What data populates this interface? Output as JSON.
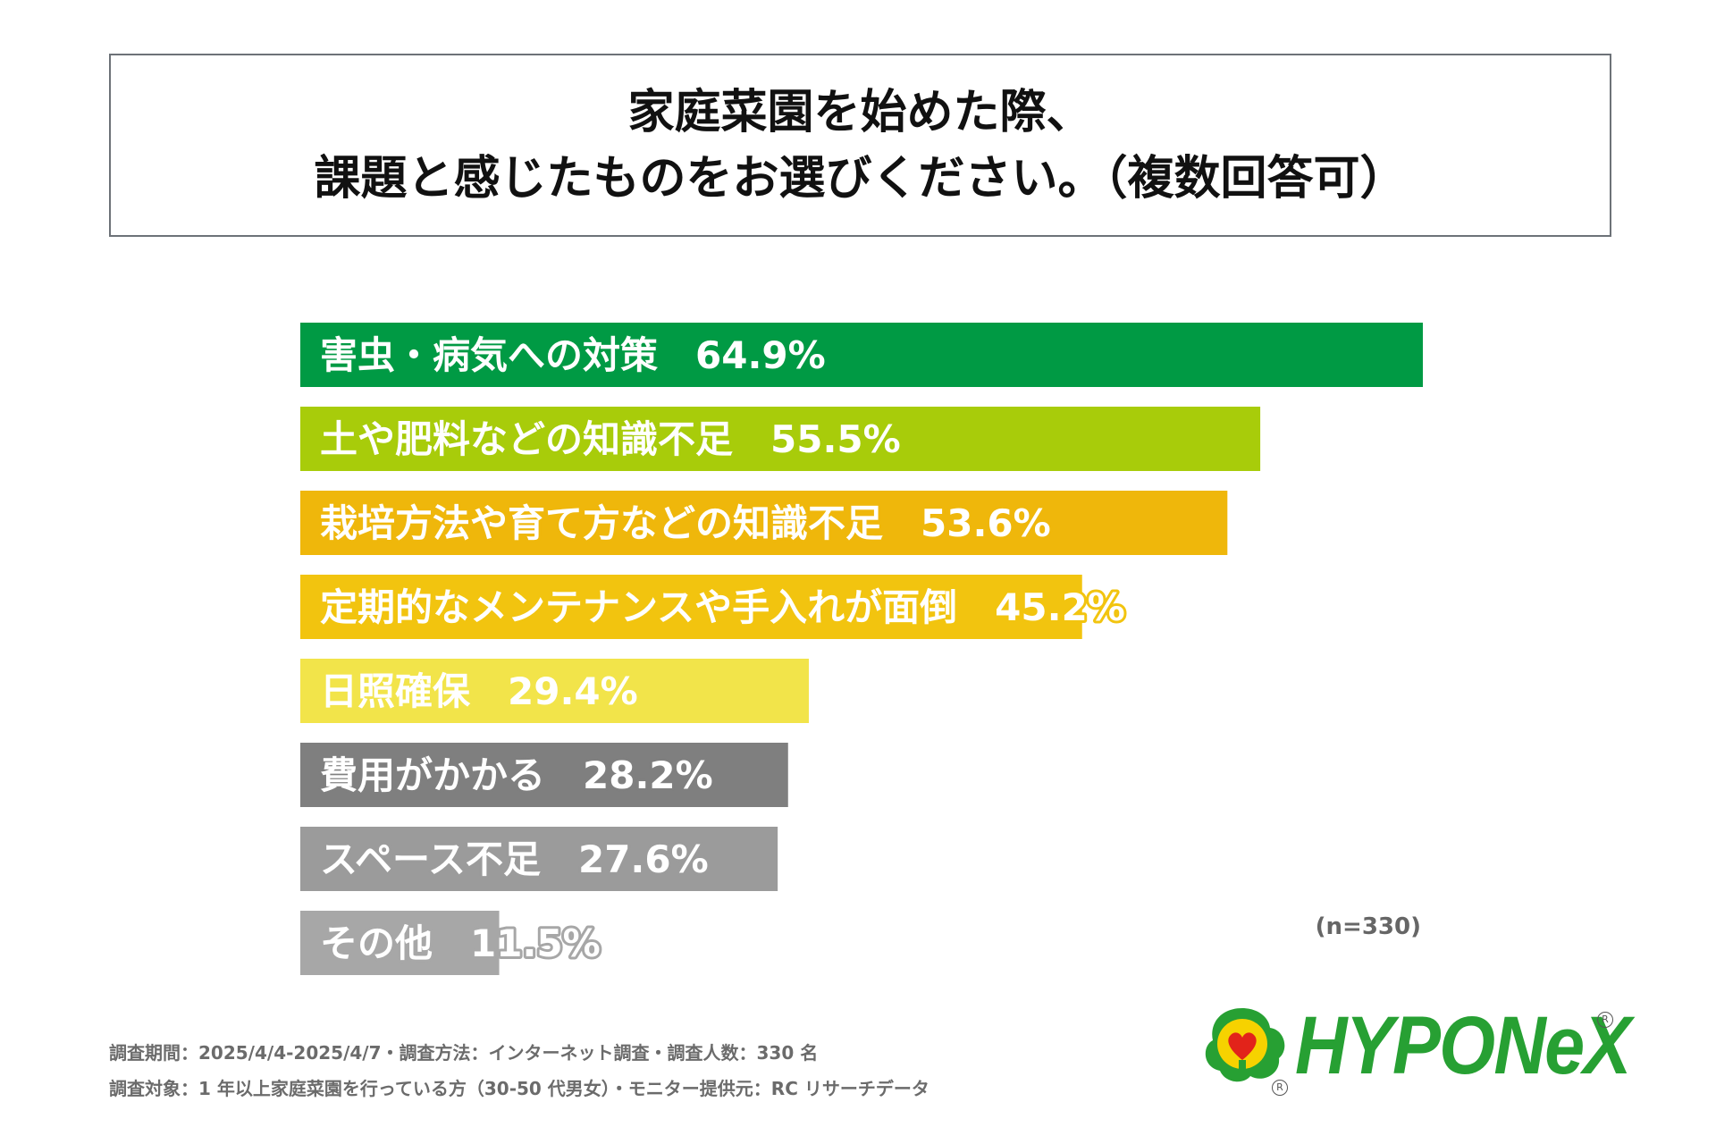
{
  "title": {
    "line1": "家庭菜園を始めた際、",
    "line2": "課題と感じたものをお選びください。（複数回答可）"
  },
  "chart_data": {
    "type": "bar",
    "orientation": "horizontal",
    "title": "家庭菜園を始めた際、課題と感じたものをお選びください。（複数回答可）",
    "unit": "%",
    "xlim": [
      0,
      100
    ],
    "categories": [
      "害虫・病気への対策",
      "土や肥料などの知識不足",
      "栽培方法や育て方などの知識不足",
      "定期的なメンテナンスや手入れが面倒",
      "日照確保",
      "費用がかかる",
      "スペース不足",
      "その他"
    ],
    "values": [
      64.9,
      55.5,
      53.6,
      45.2,
      29.4,
      28.2,
      27.6,
      11.5
    ],
    "value_labels": [
      "64.9%",
      "55.5%",
      "53.6%",
      "45.2%",
      "29.4%",
      "28.2%",
      "27.6%",
      "11.5%"
    ],
    "colors": [
      "#009a44",
      "#a8cc0a",
      "#efb70b",
      "#f2c40f",
      "#f2e44a",
      "#7f7f7f",
      "#9b9b9b",
      "#a7a7a7"
    ]
  },
  "sample_note": "(n=330)",
  "footer": {
    "line1": "調査期間：2025/4/4-2025/4/7・調査方法：インターネット調査・調査人数：330 名",
    "line2": "調査対象：1 年以上家庭菜園を行っている方（30-50 代男女）・モニター提供元：RC リサーチデータ"
  },
  "logo": {
    "text": "HYPONeX",
    "registered_mark": "R",
    "color_green": "#27a033",
    "color_red": "#e2231a",
    "color_yellow": "#f6d200"
  }
}
